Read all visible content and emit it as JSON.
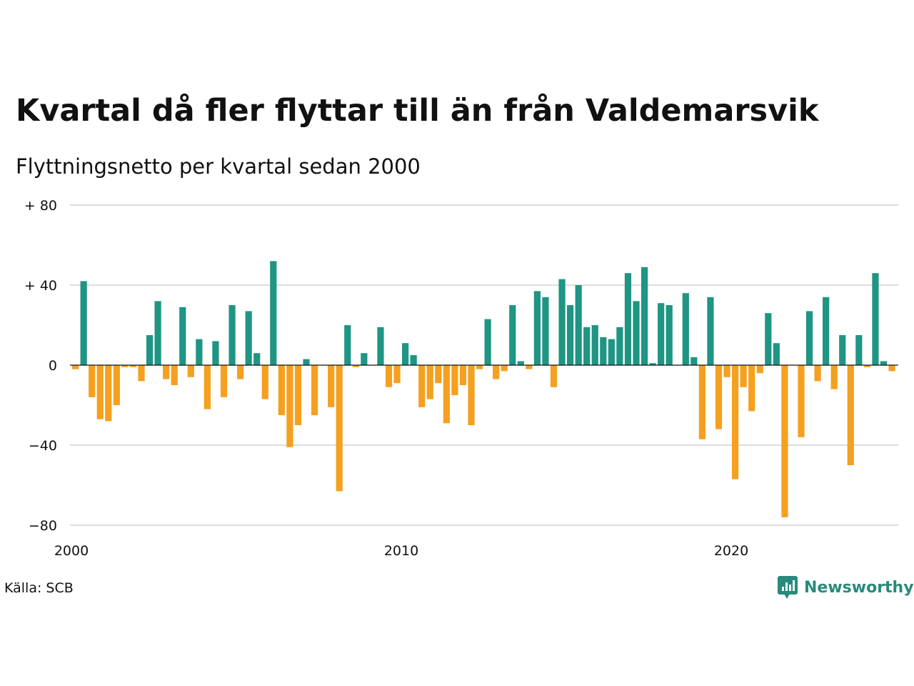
{
  "title": "Kvartal då fler flyttar till än från Valdemarsvik",
  "subtitle": "Flyttningsnetto per kvartal sedan 2000",
  "source": "Källa: SCB",
  "logo_text": "Newsworthy",
  "colors": {
    "positive": "#1f9584",
    "negative": "#f5a01e",
    "grid": "#dddddd",
    "zero_line": "#111111",
    "logo": "#2a8a7c"
  },
  "chart_data": {
    "type": "bar",
    "y_tick_labels": [
      "+ 80",
      "+ 40",
      "0",
      "−40",
      "−80"
    ],
    "y_ticks": [
      80,
      40,
      0,
      -40,
      -80
    ],
    "ylim": [
      -80,
      80
    ],
    "x_tick_labels": [
      "2000",
      "2010",
      "2020"
    ],
    "x_ticks": [
      2000,
      2010,
      2020
    ],
    "x_start": 2000,
    "grid": true,
    "values": [
      -2,
      42,
      -16,
      -27,
      -28,
      -20,
      -1,
      -1,
      -8,
      15,
      32,
      -7,
      -10,
      29,
      -6,
      13,
      -22,
      12,
      -16,
      30,
      -7,
      27,
      6,
      -17,
      52,
      -25,
      -41,
      -30,
      3,
      -25,
      0,
      -21,
      -63,
      20,
      -1,
      6,
      0,
      19,
      -11,
      -9,
      11,
      5,
      -21,
      -17,
      -9,
      -29,
      -15,
      -10,
      -30,
      -2,
      23,
      -7,
      -3,
      30,
      2,
      -2,
      37,
      34,
      -11,
      43,
      30,
      40,
      19,
      20,
      14,
      13,
      19,
      46,
      32,
      49,
      1,
      31,
      30,
      0,
      36,
      4,
      -37,
      34,
      -32,
      -6,
      -57,
      -11,
      -23,
      -4,
      26,
      11,
      -76,
      0,
      -36,
      27,
      -8,
      34,
      -12,
      15,
      -50,
      15,
      -1,
      46,
      2,
      -3
    ]
  }
}
